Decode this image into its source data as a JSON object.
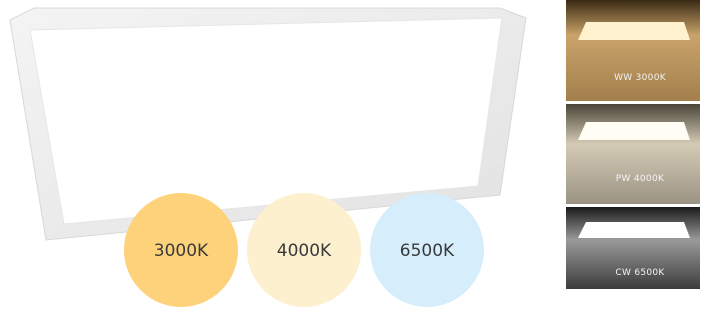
{
  "circles": [
    {
      "label": "3000K"
    },
    {
      "label": "4000K"
    },
    {
      "label": "6500K"
    }
  ],
  "swatches": [
    {
      "label": "WW 3000K"
    },
    {
      "label": "PW 4000K"
    },
    {
      "label": "CW 6500K"
    }
  ]
}
